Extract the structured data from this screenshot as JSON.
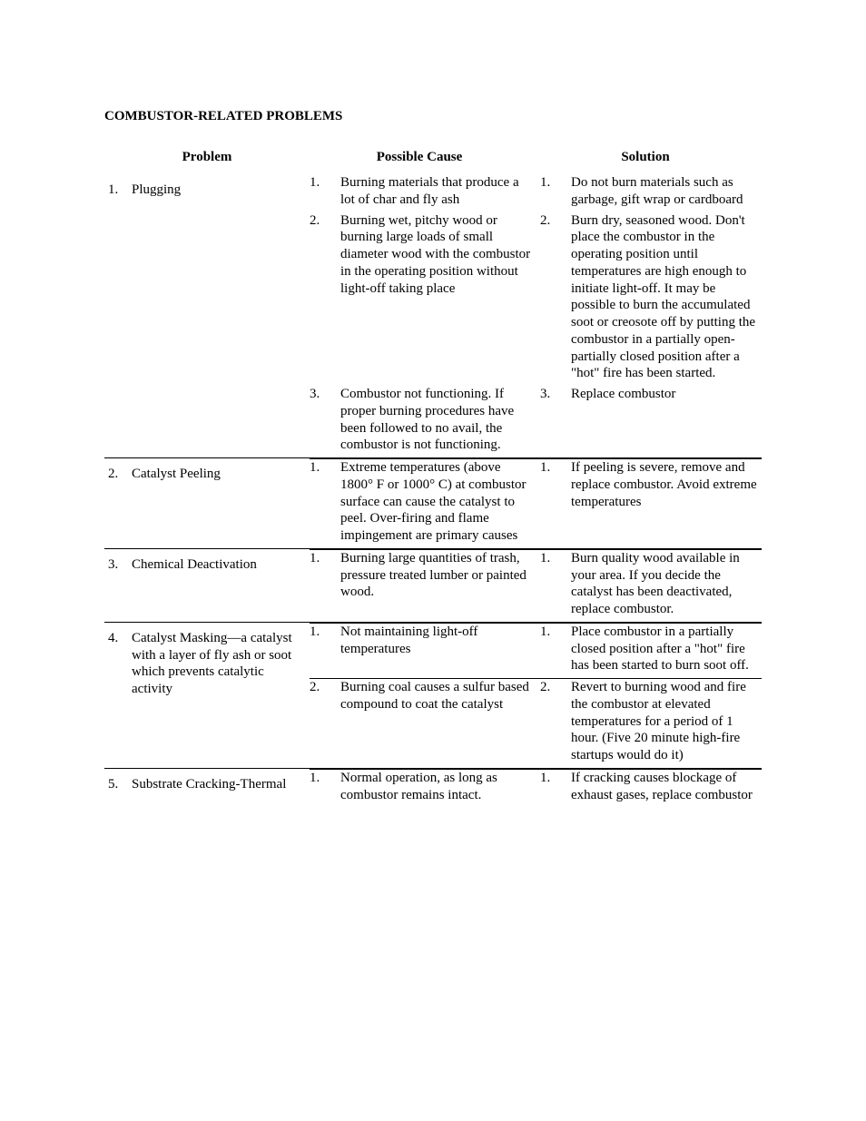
{
  "title": "COMBUSTOR-RELATED PROBLEMS",
  "headers": {
    "problem": "Problem",
    "cause": "Possible Cause",
    "solution": "Solution"
  },
  "rows": [
    {
      "num": "1.",
      "problem": "Plugging",
      "causes": [
        {
          "n": "1.",
          "text": "Burning materials that produce a lot of char and fly ash"
        },
        {
          "n": "2.",
          "text": "Burning wet, pitchy wood or burning large loads of small diameter wood with the combustor in the operating position without light-off taking place"
        },
        {
          "n": "3.",
          "text": "Combustor not functioning. If proper burning procedures have been followed to no avail, the combustor is not functioning."
        }
      ],
      "solutions": [
        {
          "n": "1.",
          "text": "Do not burn materials such as garbage, gift wrap or cardboard"
        },
        {
          "n": "2.",
          "text": "Burn dry, seasoned wood. Don't place the combustor in the operating position until temperatures are high enough to initiate light-off. It may be possible to burn the accumulated soot or creosote off by putting the combustor in a partially open-partially closed position after a \"hot\" fire has been started."
        },
        {
          "n": "3.",
          "text": "Replace combustor"
        }
      ],
      "align_to_solutions": true
    },
    {
      "num": "2.",
      "problem": "Catalyst Peeling",
      "causes": [
        {
          "n": "1.",
          "text": "Extreme temperatures (above 1800° F or 1000° C) at combustor surface can cause the catalyst to peel. Over-firing and flame impingement are primary causes"
        }
      ],
      "solutions": [
        {
          "n": "1.",
          "text": "If peeling is severe, remove and replace combustor. Avoid extreme temperatures"
        }
      ]
    },
    {
      "num": "3.",
      "problem": "Chemical Deactivation",
      "causes": [
        {
          "n": "1.",
          "text": "Burning large quantities of trash, pressure treated lumber or painted wood."
        }
      ],
      "solutions": [
        {
          "n": "1.",
          "text": "Burn quality wood available in your area. If you decide the catalyst has been deactivated, replace combustor."
        }
      ]
    },
    {
      "num": "4.",
      "problem": "Catalyst Masking—a catalyst with a layer of fly ash or soot which prevents catalytic activity",
      "causes": [
        {
          "n": "1.",
          "text": "Not maintaining light-off temperatures"
        },
        {
          "n": "2.",
          "text": "Burning coal causes a sulfur based compound to coat the catalyst"
        }
      ],
      "solutions": [
        {
          "n": "1.",
          "text": "Place combustor in a partially closed position after a \"hot\" fire has been started to burn soot off."
        },
        {
          "n": "2.",
          "text": "Revert to burning wood and fire the combustor at elevated temperatures for a period of 1 hour. (Five 20 minute high-fire startups would do it)"
        }
      ]
    },
    {
      "num": "5.",
      "problem": "Substrate Cracking-Thermal",
      "causes": [
        {
          "n": "1.",
          "text": "Normal operation, as long as combustor remains intact."
        }
      ],
      "solutions": [
        {
          "n": "1.",
          "text": "If cracking causes blockage of exhaust gases, replace combustor"
        }
      ]
    }
  ]
}
